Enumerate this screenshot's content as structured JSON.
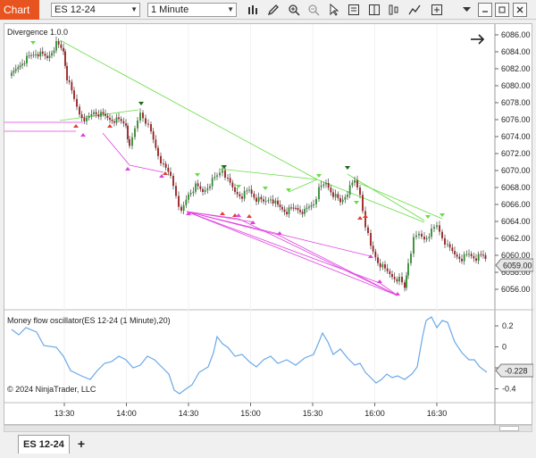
{
  "toolbar": {
    "window_tab": "Chart",
    "instrument": "ES 12-24",
    "interval": "1 Minute"
  },
  "icons": {
    "bars": "bar-chart-icon",
    "pencil": "pencil-icon",
    "zoom_in": "zoom-in-icon",
    "zoom_out": "zoom-out-icon",
    "pointer": "pointer-icon",
    "data_box": "data-box-icon",
    "panels": "panels-icon",
    "strategy": "strategy-icon",
    "properties": "properties-icon"
  },
  "chart": {
    "indicator_title": "Divergence 1.0.0",
    "oscillator_title": "Money flow oscillator(ES 12-24 (1 Minute),20)",
    "copyright": "© 2024 NinjaTrader, LLC",
    "current_price": "6059.00",
    "oscillator_value": "-0.228",
    "price_ticks": [
      "6086.00",
      "6084.00",
      "6082.00",
      "6080.00",
      "6078.00",
      "6076.00",
      "6074.00",
      "6072.00",
      "6070.00",
      "6068.00",
      "6066.00",
      "6064.00",
      "6062.00",
      "6060.00",
      "6058.00",
      "6056.00"
    ],
    "osc_ticks": [
      "0.2",
      "0",
      "-0.2",
      "-0.4"
    ],
    "time_ticks": [
      "13:30",
      "14:00",
      "14:30",
      "15:00",
      "15:30",
      "16:00",
      "16:30"
    ]
  },
  "colors": {
    "up_candle": "#2e8b2e",
    "down_candle": "#9b1c1c",
    "bearish_divergence": "#66dd44",
    "bullish_divergence": "#e040e0",
    "oscillator_line": "#6aa8e8",
    "accent": "#e8541f"
  },
  "tabs": {
    "active": "ES 12-24",
    "add": "+"
  }
}
